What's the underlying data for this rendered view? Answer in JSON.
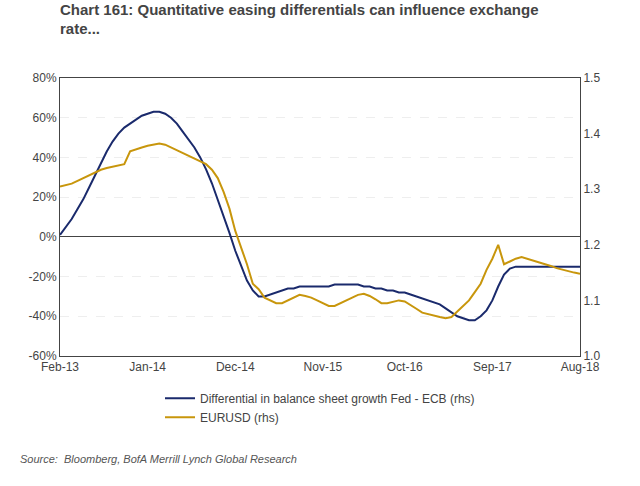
{
  "chart_data": {
    "type": "line",
    "title": "Chart 161: Quantitative easing differentials can influence exchange\nrate...",
    "annotations": [
      "Source:  Bloomberg, BofA Merrill Lynch Global Research"
    ],
    "categories": [
      "Feb-13",
      null,
      null,
      null,
      null,
      null,
      null,
      null,
      null,
      null,
      null,
      null,
      null,
      null,
      null,
      "Jan-14",
      null,
      null,
      null,
      null,
      null,
      null,
      null,
      null,
      null,
      null,
      null,
      null,
      null,
      null,
      "Dec-14",
      null,
      null,
      null,
      null,
      null,
      null,
      null,
      null,
      null,
      null,
      null,
      null,
      null,
      null,
      "Nov-15",
      null,
      null,
      null,
      null,
      null,
      null,
      null,
      null,
      null,
      null,
      null,
      null,
      null,
      "Oct-16",
      null,
      null,
      null,
      null,
      null,
      null,
      null,
      null,
      null,
      null,
      null,
      null,
      null,
      null,
      "Sep-17",
      null,
      null,
      null,
      null,
      null,
      null,
      null,
      null,
      null,
      null,
      null,
      null,
      null,
      null,
      "Aug-18"
    ],
    "series": [
      {
        "name": "Differential in balance sheet growth Fed - ECB (rhs)",
        "color": "#1a2a6c",
        "axis": "y",
        "values": [
          1,
          5,
          9,
          14,
          19,
          25,
          31,
          37,
          43,
          48,
          52,
          55,
          57,
          59,
          61,
          62,
          63,
          63,
          62,
          60,
          57,
          53,
          49,
          45,
          40,
          34,
          27,
          19,
          10,
          2,
          -7,
          -15,
          -22,
          -27,
          -30,
          -30,
          -29,
          -28,
          -27,
          -26,
          -26,
          -25,
          -25,
          -25,
          -25,
          -25,
          -25,
          -24,
          -24,
          -24,
          -24,
          -24,
          -25,
          -25,
          -26,
          -26,
          -27,
          -27,
          -28,
          -28,
          -29,
          -30,
          -31,
          -32,
          -33,
          -34,
          -36,
          -38,
          -40,
          -41,
          -42,
          -42,
          -40,
          -37,
          -32,
          -25,
          -19,
          -16,
          -15,
          -15,
          -15,
          -15,
          -15,
          -15,
          -15,
          -15,
          -15,
          -15,
          -15,
          -15
        ]
      },
      {
        "name": "EURUSD (rhs)",
        "color": "#c8960c",
        "axis": "y2",
        "values": [
          1.305,
          1.308,
          1.31,
          1.315,
          1.32,
          1.325,
          1.33,
          1.335,
          1.338,
          1.34,
          1.342,
          1.345,
          1.368,
          1.372,
          1.375,
          1.378,
          1.38,
          1.382,
          1.38,
          1.375,
          1.37,
          1.365,
          1.36,
          1.355,
          1.35,
          1.345,
          1.335,
          1.32,
          1.295,
          1.265,
          1.225,
          1.195,
          1.165,
          1.13,
          1.12,
          1.105,
          1.1,
          1.095,
          1.095,
          1.1,
          1.105,
          1.11,
          1.108,
          1.105,
          1.1,
          1.095,
          1.09,
          1.09,
          1.095,
          1.1,
          1.105,
          1.11,
          1.112,
          1.108,
          1.102,
          1.095,
          1.095,
          1.098,
          1.1,
          1.098,
          1.092,
          1.085,
          1.078,
          1.075,
          1.072,
          1.07,
          1.068,
          1.07,
          1.08,
          1.09,
          1.1,
          1.115,
          1.13,
          1.155,
          1.175,
          1.2,
          1.165,
          1.17,
          1.175,
          1.178,
          1.175,
          1.172,
          1.168,
          1.165,
          1.162,
          1.158,
          1.155,
          1.152,
          1.15,
          1.148
        ]
      }
    ],
    "ylim": [
      -60,
      80
    ],
    "yticks": [
      {
        "value": -60,
        "label": "-60%"
      },
      {
        "value": -40,
        "label": "-40%"
      },
      {
        "value": -20,
        "label": "-20%"
      },
      {
        "value": 0,
        "label": "0%"
      },
      {
        "value": 20,
        "label": "20%"
      },
      {
        "value": 40,
        "label": "40%"
      },
      {
        "value": 60,
        "label": "60%"
      },
      {
        "value": 80,
        "label": "80%"
      }
    ],
    "y2lim": [
      1.0,
      1.5
    ],
    "y2ticks": [
      {
        "value": 1.0,
        "label": "1.0"
      },
      1.1,
      1.2,
      1.3,
      1.4,
      1.5
    ],
    "grid": true,
    "legend": "bottom"
  }
}
